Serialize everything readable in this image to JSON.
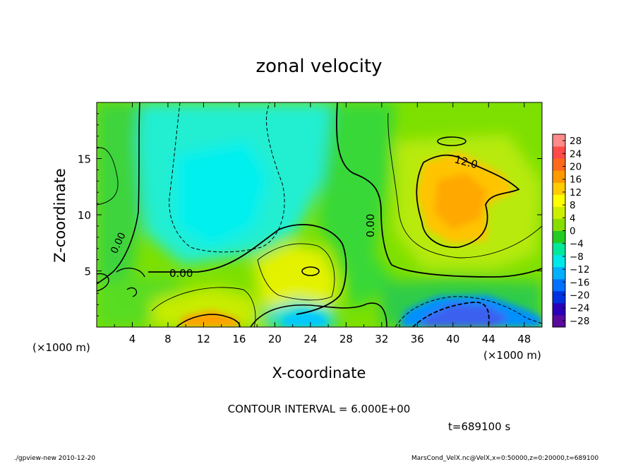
{
  "chart_data": {
    "type": "heatmap",
    "title": "zonal velocity",
    "xlabel": "X-coordinate",
    "ylabel": "Z-coordinate",
    "x_unit_label": "(×1000 m)",
    "y_unit_label": "(×1000 m)",
    "xlim": [
      0,
      50
    ],
    "ylim": [
      0,
      20
    ],
    "x_ticks": [
      "4",
      "8",
      "12",
      "16",
      "20",
      "24",
      "28",
      "32",
      "36",
      "40",
      "44",
      "48"
    ],
    "y_ticks": [
      "5",
      "10",
      "15"
    ],
    "colorbar": {
      "labels": [
        "28",
        "24",
        "20",
        "16",
        "12",
        "8",
        "4",
        "0",
        "−4",
        "−8",
        "−12",
        "−16",
        "−20",
        "−24",
        "−28"
      ],
      "range": [
        -30,
        30
      ],
      "colors": [
        "#5a0a9c",
        "#2a00b8",
        "#0030e0",
        "#0070ff",
        "#00b0ff",
        "#00e8e8",
        "#00e89a",
        "#22cc22",
        "#88dd00",
        "#ccee00",
        "#ffff00",
        "#ffcc00",
        "#ff9900",
        "#ff6a1a",
        "#ff4a4a",
        "#ff8a8a"
      ]
    },
    "contour_labels": [
      "0.00",
      "0.00",
      "0.00",
      "12.0"
    ],
    "contour_interval_text": "CONTOUR INTERVAL = 6.000E+00",
    "time_text": "t=689100 s",
    "regions": [
      {
        "name": "background",
        "value": 3
      },
      {
        "name": "upper-left cyan cell",
        "value": -8
      },
      {
        "name": "upper-right orange cell",
        "value": 15
      },
      {
        "name": "lower-middle yellow bump",
        "value": 9
      },
      {
        "name": "lower-right blue jet",
        "value": -17
      },
      {
        "name": "bottom orange spot near x=12",
        "value": 14
      },
      {
        "name": "bottom cyan spot near x=24",
        "value": -10
      }
    ]
  },
  "footer": {
    "left": "./gpview-new   2010-12-20",
    "right": "MarsCond_VelX.nc@VelX,x=0:50000,z=0:20000,t=689100"
  }
}
